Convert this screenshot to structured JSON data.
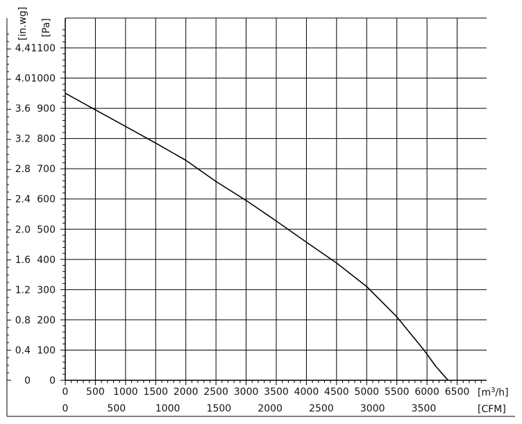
{
  "chart_data": {
    "type": "line",
    "x_unit_label": "[m³/h]",
    "x_unit_base": "m",
    "x_unit_sup": "3",
    "x_unit_tail": "/h",
    "x2_unit_label": "[CFM]",
    "y_unit_label": "[Pa]",
    "y2_unit_label": "[in.wg]",
    "xlim": [
      0,
      7000
    ],
    "ylim": [
      0,
      1100
    ],
    "x_ticks": [
      "0",
      "500",
      "1000",
      "1500",
      "2000",
      "2500",
      "3000",
      "3500",
      "4000",
      "4500",
      "5000",
      "5500",
      "6000",
      "6500"
    ],
    "x2_ticks": [
      "0",
      "500",
      "1000",
      "1500",
      "2000",
      "2500",
      "3000",
      "3500"
    ],
    "y_ticks": [
      "0",
      "100",
      "200",
      "300",
      "400",
      "500",
      "600",
      "700",
      "800",
      "900",
      "1000",
      "1100"
    ],
    "y2_ticks": [
      "0",
      "0.4",
      "0.8",
      "1.2",
      "1.6",
      "2.0",
      "2.4",
      "2.8",
      "3.2",
      "3.6",
      "4.0",
      "4.4"
    ],
    "grid": true,
    "series": [
      {
        "x": [
          0,
          500,
          1000,
          1500,
          2000,
          2500,
          3000,
          3500,
          4000,
          4500,
          5000,
          5500,
          5950,
          6150,
          6350
        ],
        "y": [
          950,
          895,
          840,
          785,
          728,
          658,
          595,
          527,
          457,
          388,
          310,
          210,
          100,
          45,
          0
        ]
      }
    ],
    "colors": {
      "line": "#000000",
      "grid": "#000000",
      "axis": "#000000"
    }
  }
}
